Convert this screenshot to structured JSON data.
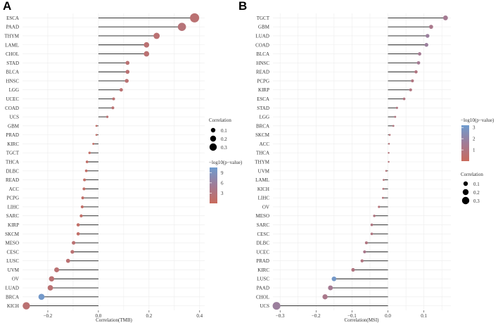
{
  "chart_data": [
    {
      "panel_label": "A",
      "type": "lollipop",
      "xlabel": "Correlation(TMB)",
      "xlim": [
        -0.3,
        0.42
      ],
      "xticks": [
        -0.2,
        0.0,
        0.2,
        0.4
      ],
      "xtick_labels": [
        "−0.2",
        "0.0",
        "0.2",
        "0.4"
      ],
      "categories": [
        "ESCA",
        "PAAD",
        "THYM",
        "LAML",
        "CHOL",
        "STAD",
        "BLCA",
        "HNSC",
        "LGG",
        "UCEC",
        "COAD",
        "UCS",
        "GBM",
        "PRAD",
        "KIRC",
        "TGCT",
        "THCA",
        "DLBC",
        "READ",
        "ACC",
        "PCPG",
        "LIHC",
        "SARC",
        "KIRP",
        "SKCM",
        "MESO",
        "CESC",
        "LUSC",
        "UVM",
        "OV",
        "LUAD",
        "BRCA",
        "KICH"
      ],
      "values": [
        0.38,
        0.33,
        0.23,
        0.19,
        0.19,
        0.115,
        0.115,
        0.112,
        0.09,
        0.06,
        0.057,
        0.035,
        -0.008,
        -0.008,
        -0.02,
        -0.035,
        -0.045,
        -0.048,
        -0.055,
        -0.057,
        -0.062,
        -0.064,
        -0.068,
        -0.08,
        -0.08,
        -0.098,
        -0.103,
        -0.12,
        -0.165,
        -0.185,
        -0.19,
        -0.225,
        -0.285
      ],
      "neglog10p": [
        2,
        2.5,
        2,
        2,
        2,
        2,
        2,
        2,
        2,
        2,
        2,
        2,
        1,
        1,
        1,
        1,
        1,
        1,
        1,
        1,
        1,
        1,
        1,
        1,
        1,
        2,
        2,
        2,
        2,
        2,
        2,
        10,
        2
      ],
      "legends": {
        "size_title": "Correlation",
        "size_items": [
          "0.1",
          "0.2",
          "0.3"
        ],
        "color_title": "−log10(p−value)",
        "color_ticks": [
          "9",
          "6",
          "3"
        ],
        "color_range": [
          0,
          10.5
        ],
        "color_tick_values": [
          9,
          6,
          3
        ]
      }
    },
    {
      "panel_label": "B",
      "type": "lollipop",
      "xlabel": "Correlation(MSI)",
      "xlim": [
        -0.32,
        0.175
      ],
      "xticks": [
        -0.3,
        -0.2,
        -0.1,
        0.0,
        0.1
      ],
      "xtick_labels": [
        "−0.3",
        "−0.2",
        "−0.1",
        "0.0",
        "0.1"
      ],
      "categories": [
        "TGCT",
        "GBM",
        "LUAD",
        "COAD",
        "BLCA",
        "HNSC",
        "READ",
        "PCPG",
        "KIRP",
        "ESCA",
        "STAD",
        "LGG",
        "BRCA",
        "SKCM",
        "ACC",
        "THCA",
        "THYM",
        "UVM",
        "LAML",
        "KICH",
        "LIHC",
        "OV",
        "MESO",
        "SARC",
        "CESC",
        "DLBC",
        "UCEC",
        "PRAD",
        "KIRC",
        "LUSC",
        "PAAD",
        "CHOL",
        "UCS"
      ],
      "values": [
        0.16,
        0.12,
        0.11,
        0.107,
        0.088,
        0.085,
        0.078,
        0.068,
        0.063,
        0.045,
        0.025,
        0.02,
        0.015,
        0.005,
        0.003,
        0.002,
        0.002,
        -0.005,
        -0.012,
        -0.013,
        -0.014,
        -0.025,
        -0.038,
        -0.045,
        -0.045,
        -0.06,
        -0.065,
        -0.072,
        -0.097,
        -0.15,
        -0.16,
        -0.175,
        -0.31
      ],
      "neglog10p": [
        1.5,
        1.3,
        1.8,
        1.8,
        1.5,
        1.5,
        1,
        1,
        1,
        1,
        1,
        1,
        1,
        0.8,
        0.8,
        0.8,
        0.8,
        0.8,
        0.8,
        0.8,
        0.8,
        0.8,
        1,
        1,
        1,
        1,
        1.3,
        1,
        1,
        3,
        1.5,
        1.3,
        1.8
      ],
      "legends": {
        "size_title": "Correlation",
        "size_items": [
          "0.1",
          "0.2",
          "0.3"
        ],
        "color_title": "−log10(p−value)",
        "color_ticks": [
          "3",
          "2",
          "1"
        ],
        "color_range": [
          0,
          3.2
        ],
        "color_tick_values": [
          3,
          2,
          1
        ]
      }
    }
  ]
}
